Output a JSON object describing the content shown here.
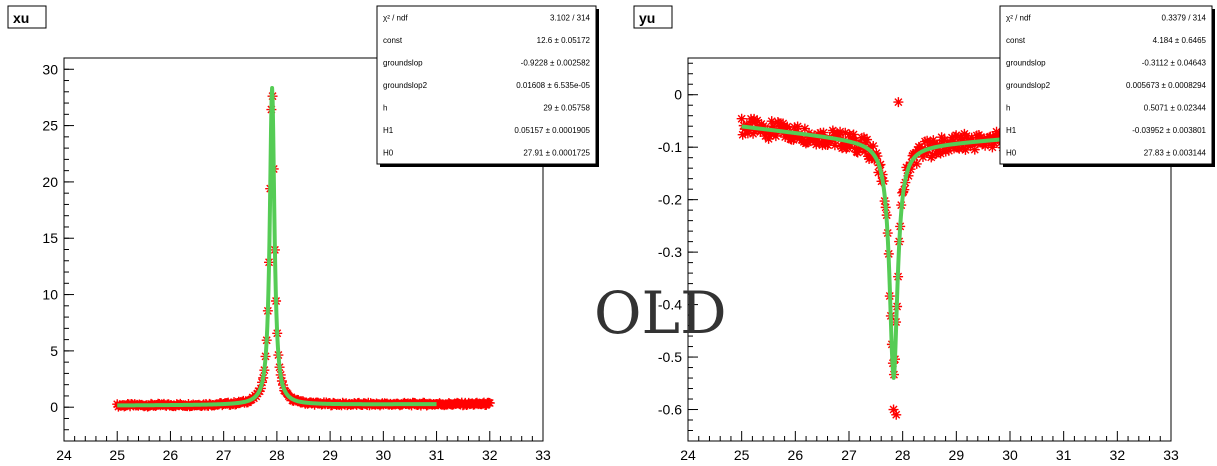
{
  "watermark": "OLD",
  "chart_data": [
    {
      "type": "scatter",
      "title": "xu",
      "xlim": [
        24,
        33
      ],
      "ylim": [
        -3,
        31
      ],
      "xticks": [
        24,
        25,
        26,
        27,
        28,
        29,
        30,
        31,
        32,
        33
      ],
      "yticks": [
        0,
        5,
        10,
        15,
        20,
        25,
        30
      ],
      "marker_color": "#ff0000",
      "fit_color": "#55cc55",
      "peak_type": "peak",
      "x_range": [
        25.0,
        32.0
      ],
      "fit_x_range": [
        25.0,
        31.0
      ],
      "stats": {
        "rows": [
          {
            "name": "χ² / ndf",
            "value": "3.102 / 314"
          },
          {
            "name": "const",
            "value": "12.6 ± 0.05172"
          },
          {
            "name": "groundslop",
            "value": "-0.9228 ± 0.002582"
          },
          {
            "name": "groundslop2",
            "value": "0.01608 ± 6.535e-05"
          },
          {
            "name": "h",
            "value": "29 ± 0.05758"
          },
          {
            "name": "H1",
            "value": "0.05157 ± 0.0001905"
          },
          {
            "name": "H0",
            "value": "27.91 ± 0.0001725"
          }
        ]
      },
      "params": {
        "h": 29,
        "H1": 0.05157,
        "H0": 27.91
      }
    },
    {
      "type": "scatter",
      "title": "yu",
      "xlim": [
        24,
        33
      ],
      "ylim": [
        -0.66,
        0.07
      ],
      "xticks": [
        24,
        25,
        26,
        27,
        28,
        29,
        30,
        31,
        32,
        33
      ],
      "yticks": [
        0,
        -0.1,
        -0.2,
        -0.3,
        -0.4,
        -0.5,
        -0.6
      ],
      "marker_color": "#ff0000",
      "fit_color": "#55cc55",
      "peak_type": "dip",
      "x_range": [
        25.0,
        30.0
      ],
      "fit_x_range": [
        25.0,
        30.0
      ],
      "stats": {
        "rows": [
          {
            "name": "χ² / ndf",
            "value": "0.3379 / 314"
          },
          {
            "name": "const",
            "value": "4.184 ± 0.6465"
          },
          {
            "name": "groundslop",
            "value": "-0.3112 ± 0.04643"
          },
          {
            "name": "groundslop2",
            "value": "0.005673 ± 0.0008294"
          },
          {
            "name": "h",
            "value": "0.5071 ± 0.02344"
          },
          {
            "name": "H1",
            "value": "-0.03952 ± 0.003801"
          },
          {
            "name": "H0",
            "value": "27.83 ± 0.003144"
          }
        ]
      },
      "params": {
        "h": 0.5071,
        "H1": -0.03952,
        "H0": 27.83
      }
    }
  ]
}
